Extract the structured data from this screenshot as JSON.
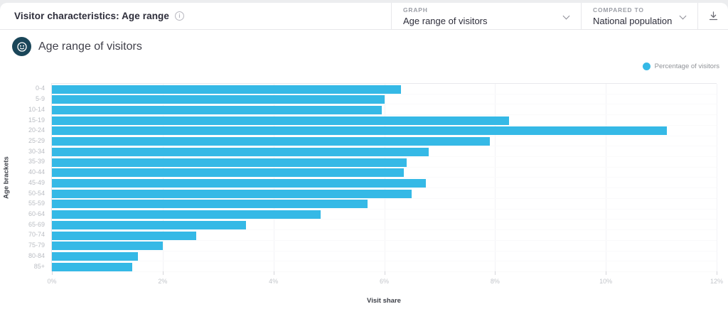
{
  "colors": {
    "accent": "#35b9e6",
    "icon_circle": "#1a4659",
    "card_bg": "#ffffff",
    "page_bg": "#ecedef"
  },
  "header": {
    "title": "Visitor characteristics: Age range",
    "info_icon": "i",
    "graph": {
      "label": "GRAPH",
      "value": "Age range of visitors"
    },
    "compared": {
      "label": "COMPARED TO",
      "value": "National population"
    }
  },
  "section": {
    "title": "Age range of visitors"
  },
  "legend": {
    "label": "Percentage of visitors"
  },
  "chart_data": {
    "type": "bar",
    "orientation": "horizontal",
    "title": "Age range of visitors",
    "categories": [
      "0-4",
      "5-9",
      "10-14",
      "15-19",
      "20-24",
      "25-29",
      "30-34",
      "35-39",
      "40-44",
      "45-49",
      "50-54",
      "55-59",
      "60-64",
      "65-69",
      "70-74",
      "75-79",
      "80-84",
      "85+"
    ],
    "values": [
      6.3,
      6.0,
      5.95,
      8.25,
      11.1,
      7.9,
      6.8,
      6.4,
      6.35,
      6.75,
      6.5,
      5.7,
      4.85,
      3.5,
      2.6,
      2.0,
      1.55,
      1.45
    ],
    "series_name": "Percentage of visitors",
    "xlabel": "Visit share",
    "ylabel": "Age brackets",
    "xlim": [
      0,
      12
    ],
    "xticks": [
      "0%",
      "2%",
      "4%",
      "6%",
      "8%",
      "10%",
      "12%"
    ],
    "grid": "vertical",
    "legend_position": "top-right",
    "bar_color": "#35b9e6"
  }
}
